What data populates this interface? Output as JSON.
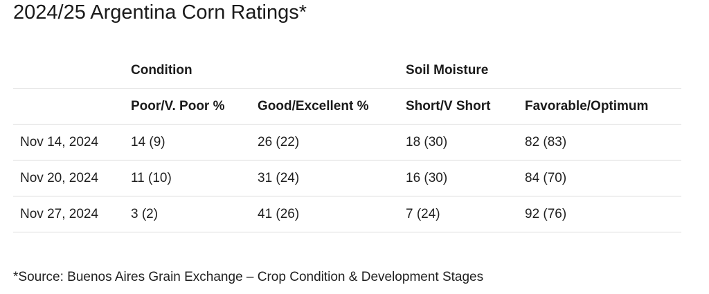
{
  "title": "2024/25 Argentina Corn Ratings*",
  "table": {
    "group_headers": {
      "condition": "Condition",
      "soil_moisture": "Soil Moisture"
    },
    "columns": [
      "",
      "Poor/V. Poor %",
      "Good/Excellent %",
      "Short/V Short",
      "Favorable/Optimum"
    ],
    "rows": [
      [
        "Nov 14, 2024",
        "14 (9)",
        "26 (22)",
        "18 (30)",
        "82 (83)"
      ],
      [
        "Nov 20, 2024",
        "11 (10)",
        "31 (24)",
        "16 (30)",
        "84 (70)"
      ],
      [
        "Nov 27, 2024",
        "3 (2)",
        "41 (26)",
        "7 (24)",
        "92 (76)"
      ]
    ]
  },
  "footnote": "*Source: Buenos Aires Grain Exchange – Crop Condition & Development Stages"
}
